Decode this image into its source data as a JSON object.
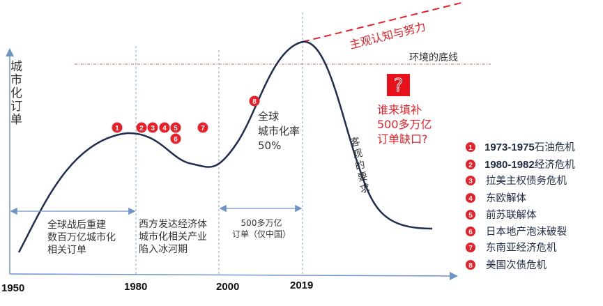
{
  "y_axis_label": "城市化订单",
  "x_ticks": [
    "1950",
    "1980",
    "2000",
    "2019"
  ],
  "periods": [
    {
      "lines": [
        "全球战后重建",
        "数百万亿城市化",
        "相关订单"
      ]
    },
    {
      "lines": [
        "西方发达经济体",
        "城市化相关产业",
        "陷入冰河期"
      ]
    },
    {
      "lines": [
        "500多万亿",
        "订单（仅中国）"
      ]
    }
  ],
  "annotations": {
    "urbanization": [
      "全球",
      "城市化率",
      "50%"
    ],
    "subjective": "主观认知与努力",
    "baseline": "环境的底线",
    "objective": "客观的要求",
    "question_mark": "?",
    "question": [
      "谁来填补",
      "500多万亿",
      "订单缺口?"
    ]
  },
  "markers": [
    "1",
    "2",
    "3",
    "4",
    "5",
    "6",
    "7",
    "8"
  ],
  "legend": [
    {
      "num": "1",
      "bold": "1973-1975",
      "text": "石油危机"
    },
    {
      "num": "2",
      "bold": "1980-1982",
      "text": "经济危机"
    },
    {
      "num": "3",
      "bold": "",
      "text": "拉美主权债务危机"
    },
    {
      "num": "4",
      "bold": "",
      "text": "东欧解体"
    },
    {
      "num": "5",
      "bold": "",
      "text": "前苏联解体"
    },
    {
      "num": "6",
      "bold": "",
      "text": "日本地产泡沫破裂"
    },
    {
      "num": "7",
      "bold": "",
      "text": "东南亚经济危机"
    },
    {
      "num": "8",
      "bold": "",
      "text": "美国次债危机"
    }
  ],
  "colors": {
    "curve": "#1f2d52",
    "axis": "#6f94c8",
    "accent": "#e8202a"
  }
}
